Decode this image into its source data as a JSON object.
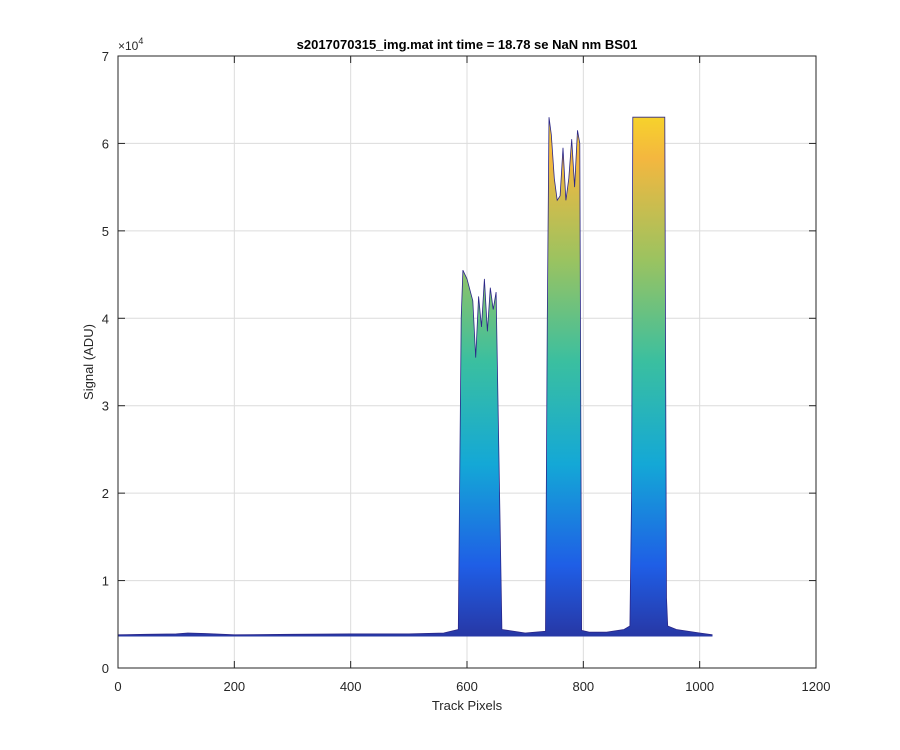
{
  "chart_data": {
    "type": "area",
    "title": "s2017070315_img.mat int time = 18.78 se  NaN nm BS01",
    "xlabel": "Track Pixels",
    "ylabel": "Signal (ADU)",
    "xlim": [
      0,
      1200
    ],
    "ylim": [
      0,
      70000
    ],
    "y_exponent_label": "×10",
    "y_exponent_power": "4",
    "grid": true,
    "xticks": [
      0,
      200,
      400,
      600,
      800,
      1000,
      1200
    ],
    "xtick_labels": [
      "0",
      "200",
      "400",
      "600",
      "800",
      "1000",
      "1200"
    ],
    "yticks": [
      0,
      10000,
      20000,
      30000,
      40000,
      50000,
      60000,
      70000
    ],
    "ytick_labels": [
      "0",
      "1",
      "2",
      "3",
      "4",
      "5",
      "6",
      "7"
    ],
    "colormap": [
      "#2b2688",
      "#1f5ee6",
      "#14a8d6",
      "#3abfa0",
      "#9bc360",
      "#f4b73f",
      "#fbfa0e"
    ],
    "envelope": {
      "x": [
        0,
        50,
        100,
        120,
        150,
        200,
        300,
        400,
        500,
        560,
        585,
        590,
        593,
        600,
        610,
        615,
        620,
        625,
        630,
        635,
        640,
        645,
        650,
        660,
        700,
        735,
        738,
        741,
        745,
        750,
        755,
        760,
        765,
        770,
        775,
        780,
        785,
        790,
        794,
        797,
        810,
        840,
        870,
        880,
        883,
        885,
        888,
        890,
        900,
        940,
        941,
        943,
        945,
        960,
        1000,
        1022
      ],
      "y": [
        3800,
        3850,
        3900,
        4000,
        3950,
        3800,
        3850,
        3900,
        3900,
        4000,
        4400,
        40000,
        45500,
        44500,
        42000,
        35500,
        42500,
        39000,
        44500,
        38500,
        43500,
        41000,
        43000,
        4400,
        4000,
        4200,
        40000,
        63000,
        61000,
        56000,
        53500,
        54000,
        59500,
        53500,
        56000,
        60500,
        55000,
        61500,
        60000,
        4300,
        4100,
        4100,
        4400,
        4800,
        20000,
        63000,
        63000,
        63000,
        63000,
        63000,
        45000,
        8000,
        4800,
        4400,
        4000,
        3800
      ]
    }
  }
}
